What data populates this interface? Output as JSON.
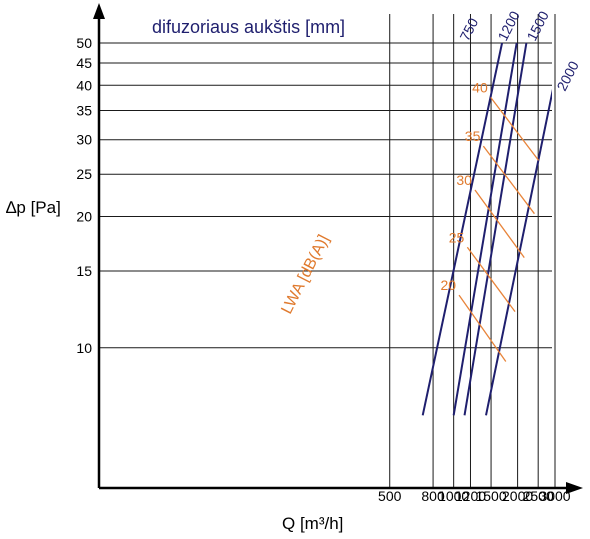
{
  "chart_data": {
    "type": "line",
    "title": "difuzoriaus aukštis [mm]",
    "xlabel": "Q [m³/h]",
    "ylabel": "∆p [Pa]",
    "x_scale": "log",
    "y_scale": "log",
    "xlim": [
      350,
      3000
    ],
    "ylim": [
      7,
      50
    ],
    "x_ticks": [
      500,
      800,
      1000,
      1200,
      1500,
      2000,
      2500,
      3000
    ],
    "x_tick_labels": [
      "500",
      "800",
      "1000",
      "1200",
      "1500",
      "2000",
      "2500",
      "3000"
    ],
    "y_ticks": [
      10,
      15,
      20,
      25,
      30,
      35,
      40,
      45,
      50
    ],
    "y_tick_labels": [
      "10",
      "15",
      "20",
      "25",
      "30",
      "35",
      "40",
      "45",
      "50"
    ],
    "grid": true,
    "series": [
      {
        "name": "750",
        "points": [
          [
            715,
            7
          ],
          [
            1690,
            50
          ]
        ]
      },
      {
        "name": "1200",
        "points": [
          [
            1000,
            7
          ],
          [
            1980,
            50
          ]
        ]
      },
      {
        "name": "1500",
        "points": [
          [
            1125,
            7
          ],
          [
            2200,
            50
          ]
        ]
      },
      {
        "name": "2000",
        "points": [
          [
            1420,
            7
          ],
          [
            2960,
            40
          ]
        ]
      }
    ],
    "noise_label": "LWA [dB(A)]",
    "noise_lines": [
      {
        "label": "20",
        "points": [
          [
            1060,
            13.2
          ],
          [
            1760,
            9.3
          ]
        ]
      },
      {
        "label": "25",
        "points": [
          [
            1160,
            17.0
          ],
          [
            1945,
            12.1
          ]
        ]
      },
      {
        "label": "30",
        "points": [
          [
            1260,
            23.0
          ],
          [
            2150,
            16.1
          ]
        ]
      },
      {
        "label": "35",
        "points": [
          [
            1380,
            29.0
          ],
          [
            2400,
            20.3
          ]
        ]
      },
      {
        "label": "40",
        "points": [
          [
            1495,
            37.5
          ],
          [
            2510,
            26.9
          ]
        ]
      }
    ]
  }
}
